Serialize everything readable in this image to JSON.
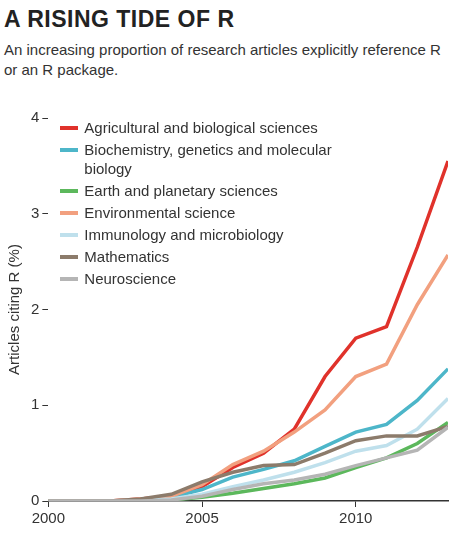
{
  "chart_data": {
    "type": "line",
    "title": "A RISING TIDE OF R",
    "subtitle": "An increasing proportion of research articles explicitly reference R or an R package.",
    "y_label": "Articles citing R (%)",
    "x": [
      2000,
      2001,
      2002,
      2003,
      2004,
      2005,
      2006,
      2007,
      2008,
      2009,
      2010,
      2011,
      2012,
      2013
    ],
    "series": [
      {
        "name": "Agricultural and biological sciences",
        "color": "#e0322b",
        "values": [
          0,
          0,
          0,
          0.02,
          0.05,
          0.15,
          0.35,
          0.5,
          0.75,
          1.3,
          1.7,
          1.82,
          2.65,
          3.55
        ]
      },
      {
        "name": "Biochemistry, genetics and molecular biology",
        "color": "#4db6c9",
        "values": [
          0,
          0,
          0,
          0.01,
          0.04,
          0.12,
          0.25,
          0.33,
          0.42,
          0.57,
          0.72,
          0.8,
          1.05,
          1.38
        ]
      },
      {
        "name": "Earth and planetary sciences",
        "color": "#5cb85c",
        "values": [
          0,
          0,
          0,
          0,
          0.01,
          0.04,
          0.08,
          0.13,
          0.18,
          0.24,
          0.35,
          0.45,
          0.6,
          0.82
        ]
      },
      {
        "name": "Environmental science",
        "color": "#f2a07f",
        "values": [
          0,
          0,
          0,
          0.02,
          0.05,
          0.17,
          0.38,
          0.52,
          0.72,
          0.95,
          1.3,
          1.43,
          2.05,
          2.57
        ]
      },
      {
        "name": "Immunology and microbiology",
        "color": "#bfe0ec",
        "values": [
          0,
          0,
          0,
          0.01,
          0.02,
          0.07,
          0.15,
          0.22,
          0.3,
          0.4,
          0.52,
          0.58,
          0.75,
          1.07
        ]
      },
      {
        "name": "Mathematics",
        "color": "#8c7b6b",
        "values": [
          0,
          0,
          0,
          0.02,
          0.07,
          0.2,
          0.3,
          0.37,
          0.38,
          0.5,
          0.63,
          0.68,
          0.68,
          0.78
        ]
      },
      {
        "name": "Neuroscience",
        "color": "#b5b5b5",
        "values": [
          0,
          0,
          0,
          0,
          0.01,
          0.05,
          0.12,
          0.18,
          0.22,
          0.28,
          0.37,
          0.45,
          0.53,
          0.77
        ]
      }
    ],
    "xlim": [
      2000,
      2013
    ],
    "xticks": [
      2000,
      2005,
      2010
    ],
    "ylim": [
      0,
      4
    ],
    "yticks": [
      0,
      1,
      2,
      3,
      4
    ],
    "grid": false,
    "legend": "upper left"
  }
}
